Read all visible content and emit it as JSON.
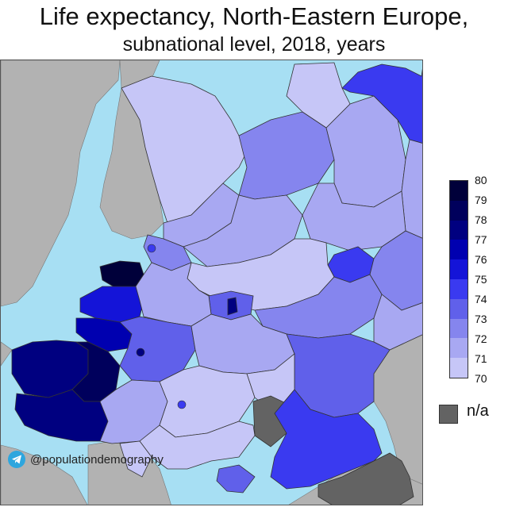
{
  "title": "Life expectancy, North-Eastern Europe,",
  "subtitle": "subnational level, 2018, years",
  "legend": {
    "ticks": [
      "80",
      "79",
      "78",
      "77",
      "76",
      "75",
      "74",
      "73",
      "72",
      "71",
      "70"
    ],
    "colors": [
      "#00003a",
      "#00005c",
      "#000080",
      "#0000b0",
      "#1414d8",
      "#3a3af0",
      "#6060ea",
      "#8585ee",
      "#a8a8f2",
      "#c6c6f7",
      "#e2e2fb"
    ],
    "na_label": "n/a",
    "na_color": "#636363"
  },
  "map_colors": {
    "sea": "#a7dff3",
    "foreign_land": "#b2b2b2",
    "border": "#333333"
  },
  "credit": {
    "icon": "telegram-icon",
    "handle": "@populationdemography"
  }
}
